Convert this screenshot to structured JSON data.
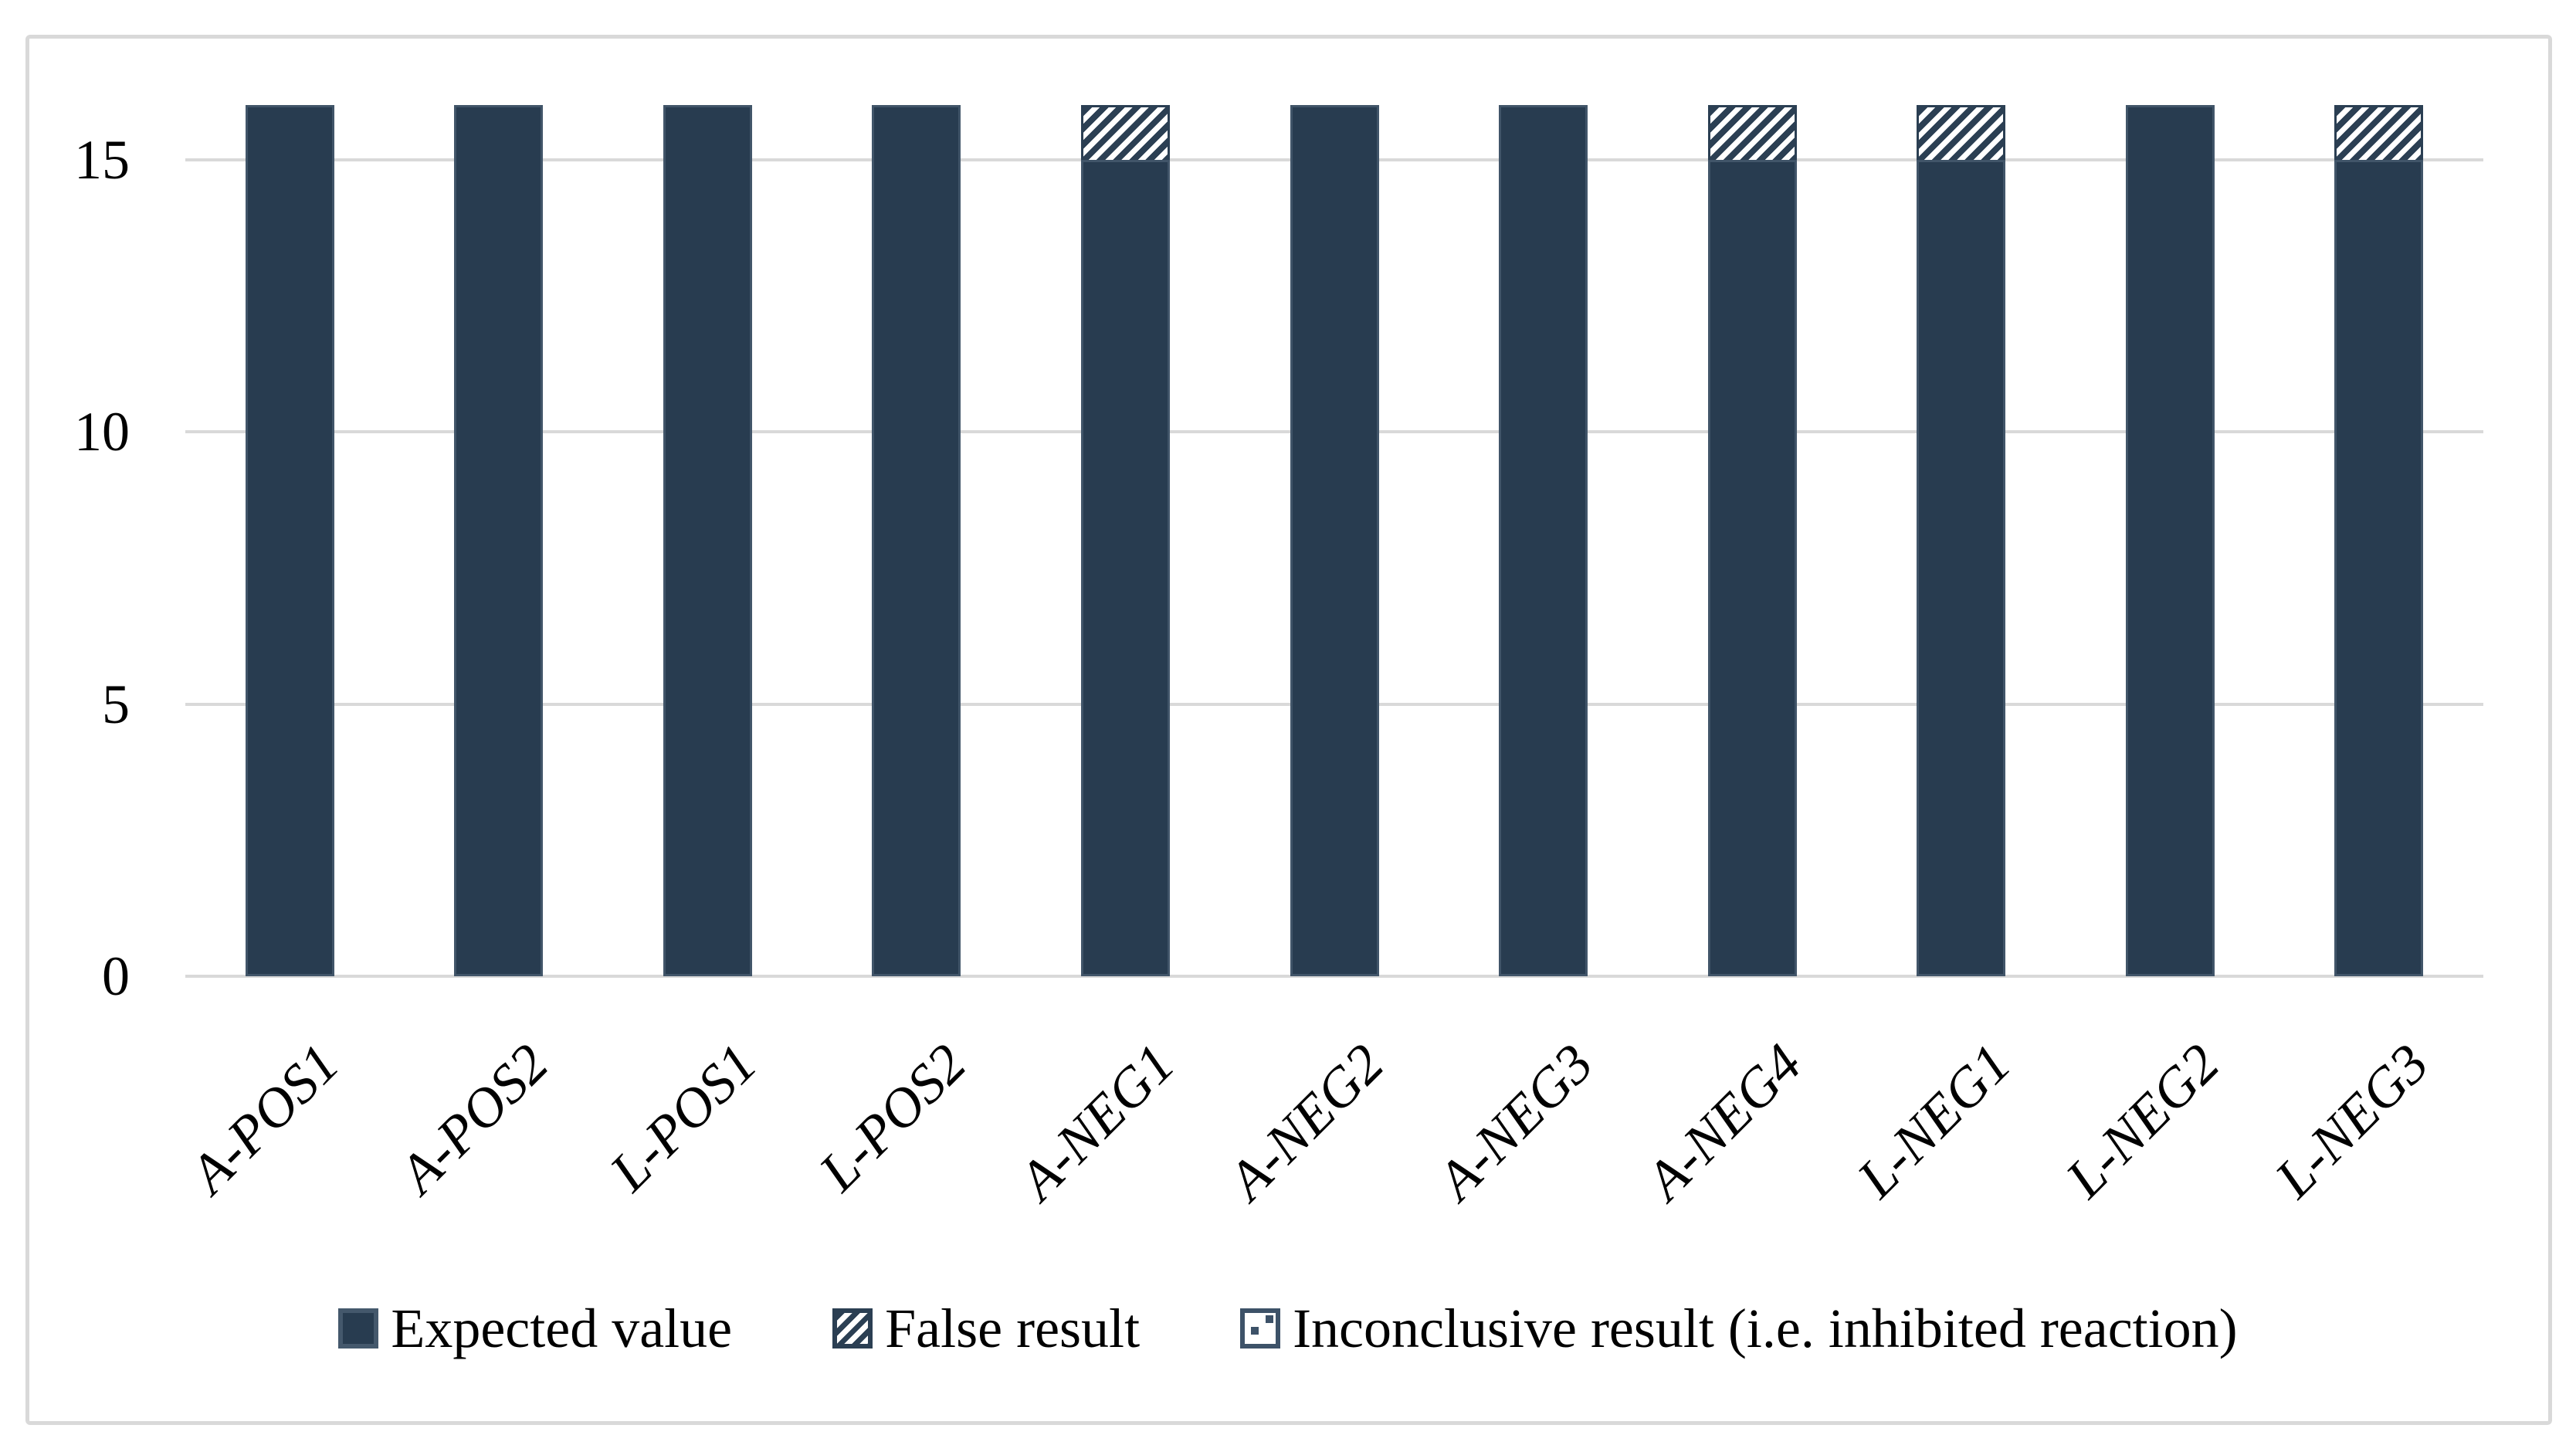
{
  "chart_data": {
    "type": "bar",
    "subtype": "stacked-vertical",
    "categories": [
      "A-POS1",
      "A-POS2",
      "L-POS1",
      "L-POS2",
      "A-NEG1",
      "A-NEG2",
      "A-NEG3",
      "A-NEG4",
      "L-NEG1",
      "L-NEG2",
      "L-NEG3"
    ],
    "series": [
      {
        "name": "Expected value",
        "style": "solid",
        "values": [
          16,
          16,
          16,
          16,
          15,
          16,
          16,
          15,
          15,
          16,
          15
        ]
      },
      {
        "name": "False result",
        "style": "hatch",
        "values": [
          0,
          0,
          0,
          0,
          1,
          0,
          0,
          1,
          1,
          0,
          1
        ]
      },
      {
        "name": "Inconclusive result (i.e. inhibited reaction)",
        "style": "dots",
        "values": [
          0,
          0,
          0,
          0,
          0,
          0,
          0,
          0,
          0,
          0,
          0
        ]
      }
    ],
    "title": "",
    "xlabel": "",
    "ylabel": "",
    "yticks": [
      0,
      5,
      10,
      15
    ],
    "ylim": [
      0,
      16
    ],
    "grid": true,
    "legend_position": "bottom",
    "colors": {
      "bar_fill": "#283c50",
      "bar_border": "#415569",
      "hatch_stripe": "#2b3f53",
      "hatch_background": "#ffffff",
      "gridline": "#d9d9d9",
      "figure_border": "#d9d9d9",
      "text": "#000000"
    }
  },
  "legend": {
    "items": [
      {
        "label": "Expected value"
      },
      {
        "label": "False result"
      },
      {
        "label": "Inconclusive result (i.e. inhibited reaction)"
      }
    ]
  }
}
